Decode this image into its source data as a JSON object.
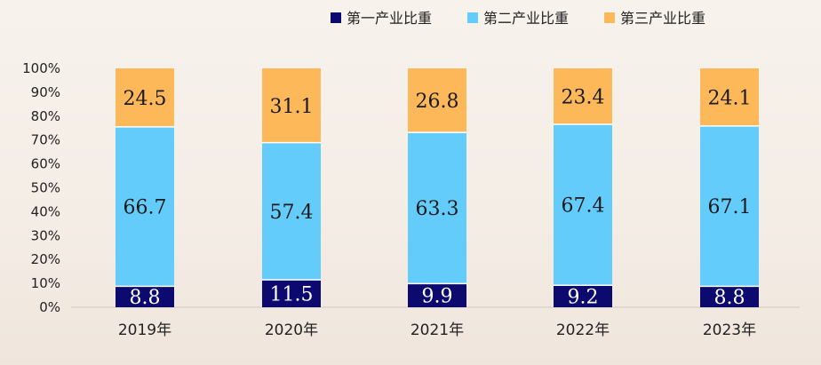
{
  "chart_data": {
    "type": "bar",
    "stacked": true,
    "categories": [
      "2019年",
      "2020年",
      "2021年",
      "2022年",
      "2023年"
    ],
    "series": [
      {
        "name": "第一产业比重",
        "values": [
          8.8,
          11.5,
          9.9,
          9.2,
          8.8
        ],
        "color": "#0c0a6e",
        "label_color": "#ffffff"
      },
      {
        "name": "第二产业比重",
        "values": [
          66.7,
          57.4,
          63.3,
          67.4,
          67.1
        ],
        "color": "#64ccfb",
        "label_color": "#1a1a1a"
      },
      {
        "name": "第三产业比重",
        "values": [
          24.5,
          31.1,
          26.8,
          23.4,
          24.1
        ],
        "color": "#fdb85a",
        "label_color": "#1a1a1a"
      }
    ],
    "y_ticks": [
      "0%",
      "10%",
      "20%",
      "30%",
      "40%",
      "50%",
      "60%",
      "70%",
      "80%",
      "90%",
      "100%"
    ],
    "ylim": [
      0,
      100
    ],
    "legend_position": "top-right"
  }
}
